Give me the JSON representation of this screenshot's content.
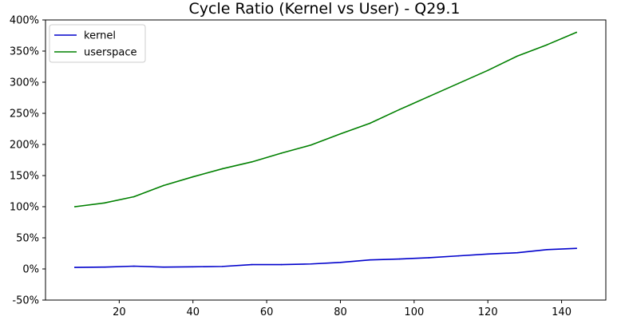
{
  "chart_data": {
    "type": "line",
    "title": "Cycle Ratio (Kernel vs User) - Q29.1",
    "xlabel": "",
    "ylabel": "",
    "xlim": [
      0,
      152
    ],
    "ylim": [
      -50,
      400
    ],
    "x_ticks": [
      20,
      40,
      60,
      80,
      100,
      120,
      140
    ],
    "x_tick_labels": [
      "20",
      "40",
      "60",
      "80",
      "100",
      "120",
      "140"
    ],
    "y_ticks": [
      -50,
      0,
      50,
      100,
      150,
      200,
      250,
      300,
      350,
      400
    ],
    "y_tick_labels": [
      "-50%",
      "0%",
      "50%",
      "100%",
      "150%",
      "200%",
      "250%",
      "300%",
      "350%",
      "400%"
    ],
    "grid": false,
    "legend_position": "top-left",
    "x": [
      8,
      16,
      24,
      32,
      40,
      48,
      56,
      64,
      72,
      80,
      88,
      96,
      104,
      112,
      120,
      128,
      136,
      144
    ],
    "series": [
      {
        "name": "kernel",
        "color": "#0000cc",
        "values": [
          2.5,
          3,
          4.5,
          3,
          3.5,
          4,
          7,
          7,
          8,
          10.5,
          14.5,
          16,
          18,
          21,
          24,
          26,
          31,
          33
        ]
      },
      {
        "name": "userspace",
        "color": "#008000",
        "values": [
          100,
          106,
          116,
          134,
          148,
          161,
          172,
          186,
          199,
          217,
          234,
          256,
          277,
          298,
          319,
          342,
          360,
          380
        ]
      }
    ]
  }
}
